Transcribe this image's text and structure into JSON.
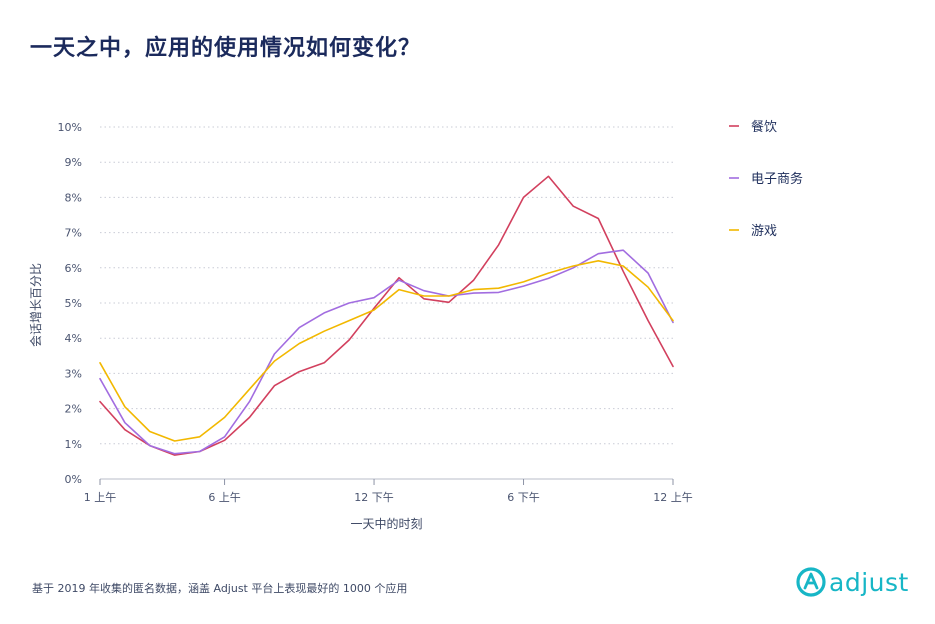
{
  "title": "一天之中，应用的使用情况如何变化？",
  "footer": "基于 2019 年收集的匿名数据，涵盖 Adjust 平台上表现最好的 1000 个应用",
  "brand": {
    "name": "adjust",
    "color": "#17b6c6"
  },
  "chart_data": {
    "type": "line",
    "xlabel": "一天中的时刻",
    "ylabel": "会话增长百分比",
    "x": [
      1,
      2,
      3,
      4,
      5,
      6,
      7,
      8,
      9,
      10,
      11,
      12,
      13,
      14,
      15,
      16,
      17,
      18,
      19,
      20,
      21,
      22,
      23,
      24
    ],
    "xlim": [
      1,
      24
    ],
    "ylim": [
      0,
      10
    ],
    "xticks": [
      {
        "x": 1,
        "label": "1 上午"
      },
      {
        "x": 6,
        "label": "6 上午"
      },
      {
        "x": 12,
        "label": "12 下午"
      },
      {
        "x": 18,
        "label": "6 下午"
      },
      {
        "x": 24,
        "label": "12 上午"
      }
    ],
    "yticks": [
      {
        "y": 0,
        "label": "0%"
      },
      {
        "y": 1,
        "label": "1%"
      },
      {
        "y": 2,
        "label": "2%"
      },
      {
        "y": 3,
        "label": "3%"
      },
      {
        "y": 4,
        "label": "4%"
      },
      {
        "y": 5,
        "label": "5%"
      },
      {
        "y": 6,
        "label": "6%"
      },
      {
        "y": 7,
        "label": "7%"
      },
      {
        "y": 8,
        "label": "8%"
      },
      {
        "y": 9,
        "label": "9%"
      },
      {
        "y": 10,
        "label": "10%"
      }
    ],
    "grid": true,
    "legend_position": "right",
    "series": [
      {
        "name": "餐饮",
        "color": "#d2405e",
        "values": [
          2.2,
          1.4,
          0.95,
          0.68,
          0.78,
          1.1,
          1.75,
          2.65,
          3.05,
          3.3,
          3.95,
          4.85,
          5.72,
          5.12,
          5.02,
          5.65,
          6.65,
          8.0,
          8.6,
          7.75,
          7.4,
          5.9,
          4.5,
          3.2
        ]
      },
      {
        "name": "电子商务",
        "color": "#a26de0",
        "values": [
          2.85,
          1.6,
          0.95,
          0.72,
          0.78,
          1.2,
          2.2,
          3.55,
          4.3,
          4.72,
          5.0,
          5.15,
          5.65,
          5.35,
          5.2,
          5.28,
          5.3,
          5.48,
          5.7,
          6.0,
          6.4,
          6.5,
          5.85,
          4.45
        ]
      },
      {
        "name": "游戏",
        "color": "#f2b800",
        "values": [
          3.3,
          2.05,
          1.35,
          1.08,
          1.2,
          1.75,
          2.55,
          3.35,
          3.85,
          4.2,
          4.5,
          4.8,
          5.38,
          5.2,
          5.2,
          5.38,
          5.42,
          5.6,
          5.85,
          6.05,
          6.2,
          6.05,
          5.45,
          4.5
        ]
      }
    ]
  }
}
